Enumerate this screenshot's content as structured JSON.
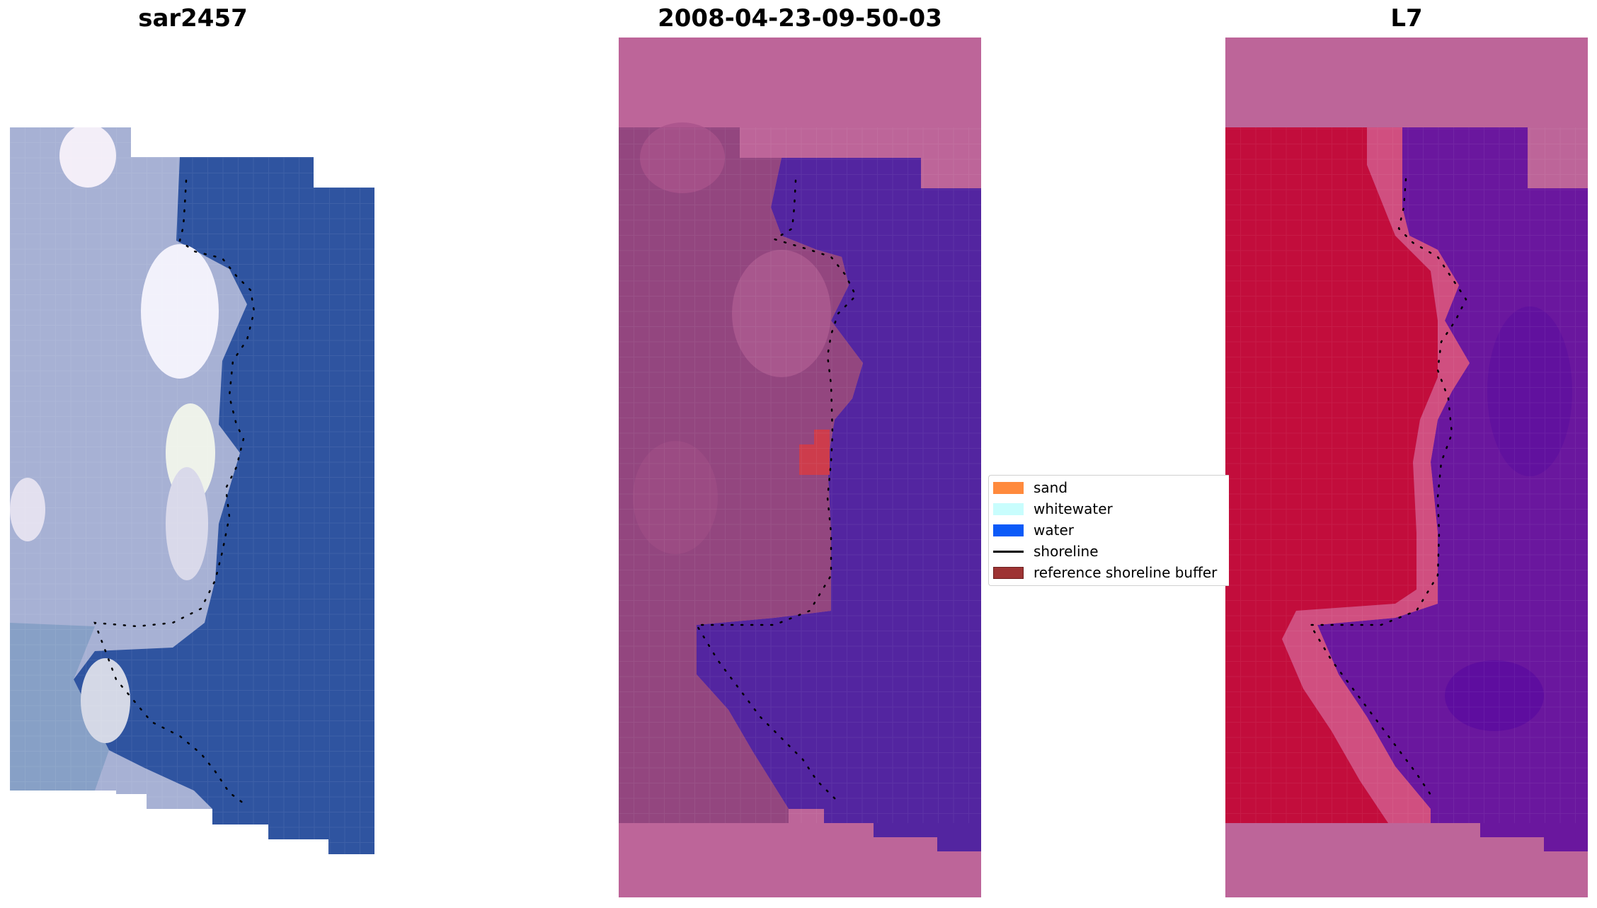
{
  "panels": [
    {
      "title": "sar2457"
    },
    {
      "title": "2008-04-23-09-50-03"
    },
    {
      "title": "L7"
    }
  ],
  "legend": {
    "items": [
      {
        "label": "sand",
        "color": "#ff8a3d",
        "kind": "patch"
      },
      {
        "label": "whitewater",
        "color": "#c8fdfd",
        "kind": "patch"
      },
      {
        "label": "water",
        "color": "#0b5af8",
        "kind": "patch"
      },
      {
        "label": "shoreline",
        "color": "#000000",
        "kind": "line"
      },
      {
        "label": "reference shoreline buffer",
        "color": "#9e3434",
        "kind": "patch"
      }
    ]
  },
  "colors": {
    "land_overlay": "#bd6599",
    "classified_land": "#93467f",
    "classified_water": "#5325a0",
    "classified_sand_patch": "#cd3c4c",
    "rgb_water": "#2f54a0",
    "rgb_land": "#a6b0d3",
    "index_land": "#c20d3c",
    "index_water": "#6a179e",
    "index_transition": "#d04f80"
  }
}
